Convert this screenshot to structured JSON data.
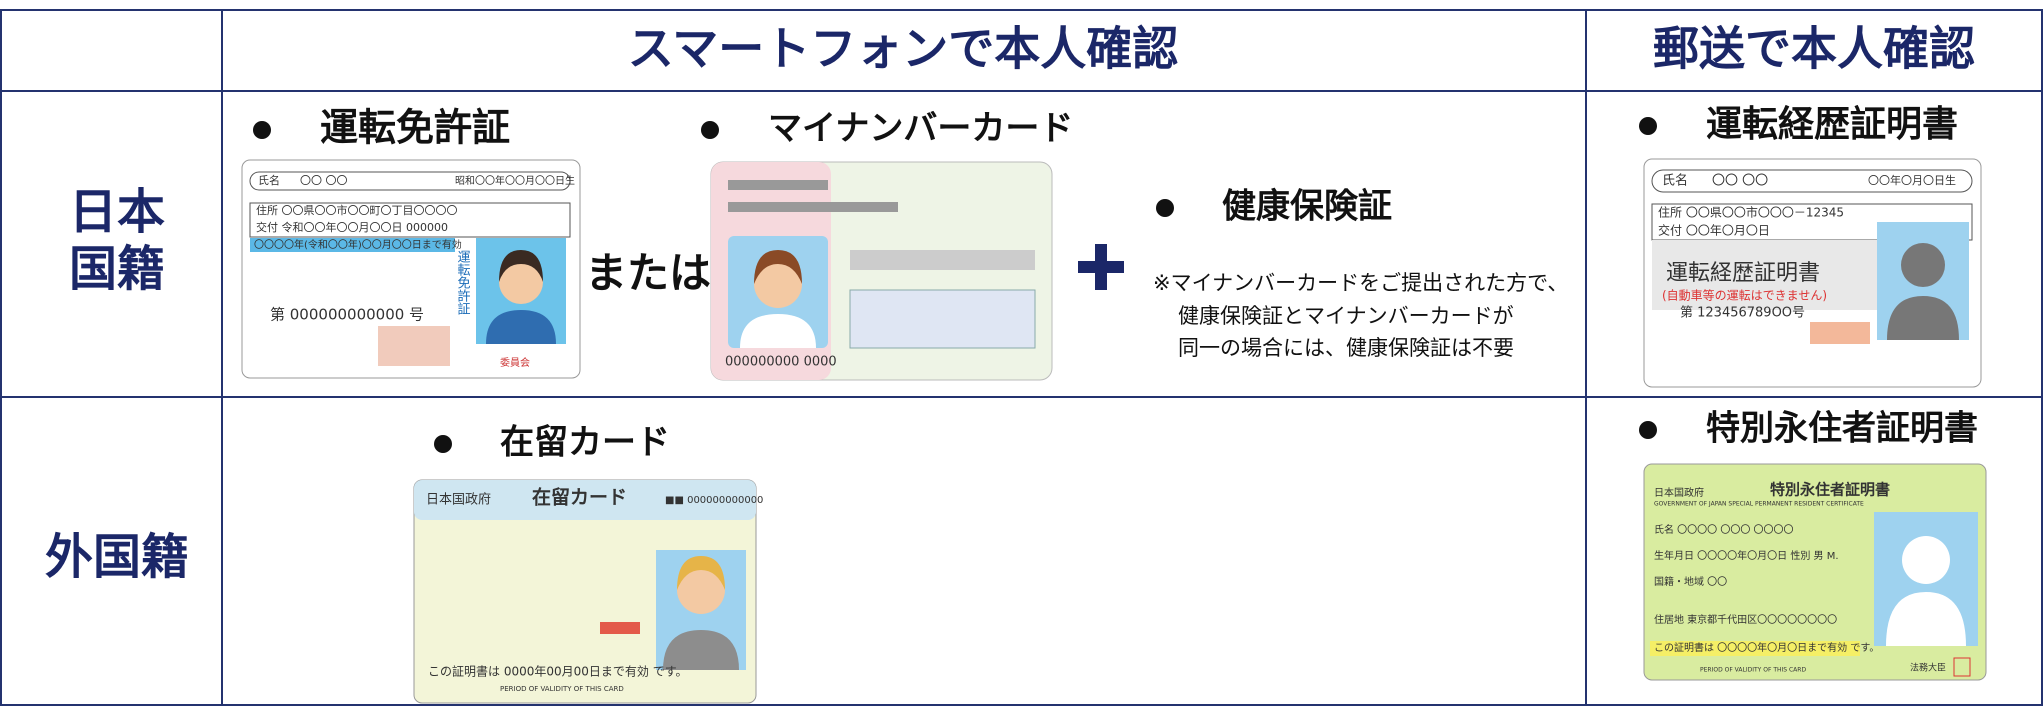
{
  "header": {
    "smartphone": "スマートフォンで本人確認",
    "mail": "郵送で本人確認"
  },
  "rows": {
    "japanese": [
      "日本",
      "国籍"
    ],
    "foreign": "外国籍"
  },
  "drivers_license": {
    "title": "運転免許証",
    "name": "氏名",
    "name_value": "〇〇 〇〇",
    "birth": "昭和〇〇年〇〇月〇〇日生",
    "address": "住所 〇〇県〇〇市〇〇町〇丁目〇〇〇〇",
    "issue": "交付 令和〇〇年〇〇月〇〇日 000000",
    "expiry": "〇〇〇〇年(令和〇〇年)〇〇月〇〇日まで有効",
    "number": "第 000000000000 号",
    "vertical": "運転免許証",
    "issuer": "委員会"
  },
  "or": "または",
  "my_number": {
    "title": "マイナンバーカード",
    "card_number": "000000000 0000"
  },
  "health": {
    "title": "健康保険証",
    "note": [
      "※マイナンバーカードをご提出された方で、",
      "健康保険証とマイナンバーカードが",
      "同一の場合には、健康保険証は不要"
    ]
  },
  "driving_history": {
    "title": "運転経歴証明書",
    "name": "氏名",
    "name_value": "〇〇 〇〇",
    "birth": "〇〇年〇月〇日生",
    "address": "住所 〇〇県〇〇市〇〇〇－12345",
    "issue": "交付 〇〇年〇月〇日",
    "card_title": "運転経歴証明書",
    "card_note": "(自動車等の運転はできません)",
    "number": "第 123456789OO号"
  },
  "residence_card": {
    "title": "在留カード",
    "government": "日本国政府",
    "card_title": "在留カード",
    "number": "■■ 000000000000",
    "validity": "この証明書は 0000年00月00日まで有効 です。",
    "validity_en": "PERIOD OF VALIDITY OF THIS CARD"
  },
  "special_permanent": {
    "title": "特別永住者証明書",
    "government": "日本国政府",
    "card_title": "特別永住者証明書",
    "subtitle": "GOVERNMENT OF JAPAN  SPECIAL PERMANENT RESIDENT CERTIFICATE",
    "name": "氏名 〇〇〇〇 〇〇〇 〇〇〇〇",
    "birth": "生年月日 〇〇〇〇年〇月〇日  性別 男 M.",
    "nationality": "国籍・地域 〇〇",
    "address": "住居地 東京都千代田区〇〇〇〇〇〇〇〇",
    "validity": "この証明書は 〇〇〇〇年〇月〇日まで有効 です。",
    "validity_en": "PERIOD OF VALIDITY OF THIS CARD",
    "minister": "法務大臣"
  }
}
